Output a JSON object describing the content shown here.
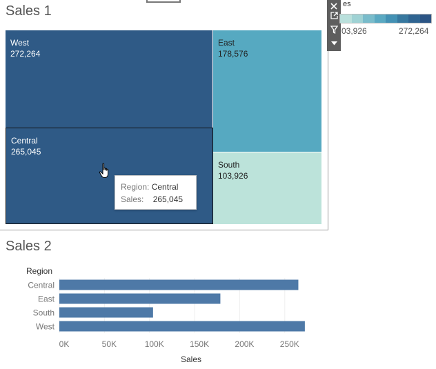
{
  "sales1": {
    "title": "Sales 1",
    "legend_title": "es",
    "legend_min": "03,926",
    "legend_max": "272,264",
    "cells": [
      {
        "region": "West",
        "value": "272,264",
        "color": "#2f5a86"
      },
      {
        "region": "Central",
        "value": "265,045",
        "color": "#2f5a86"
      },
      {
        "region": "East",
        "value": "178,576",
        "color": "#56a9c1"
      },
      {
        "region": "South",
        "value": "103,926",
        "color": "#bce3da"
      }
    ],
    "tooltip": {
      "region_key": "Region:",
      "region_val": "Central",
      "sales_key": "Sales:",
      "sales_val": "265,045"
    }
  },
  "toolbar": {
    "icons": [
      "close-icon",
      "popout-icon",
      "filter-icon",
      "dropdown-icon"
    ]
  },
  "sales2": {
    "title": "Sales 2",
    "row_header": "Region",
    "xlabel": "Sales"
  },
  "chart_data": {
    "type": "bar",
    "orientation": "horizontal",
    "categories": [
      "Central",
      "East",
      "South",
      "West"
    ],
    "values": [
      265045,
      178576,
      103926,
      272264
    ],
    "xticks": [
      "0K",
      "50K",
      "100K",
      "150K",
      "200K",
      "250K"
    ],
    "xlim": [
      0,
      280000
    ],
    "xlabel": "Sales",
    "ylabel": "Region",
    "title": "Sales 2",
    "bar_color": "#4e79a7",
    "grid": true
  }
}
